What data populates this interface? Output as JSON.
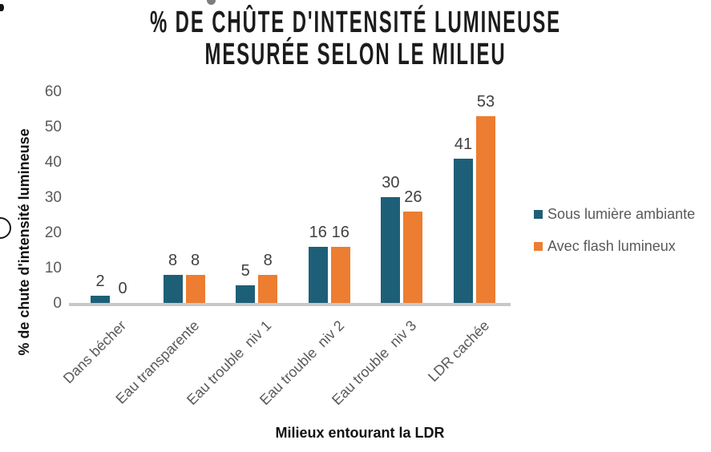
{
  "chart_data": {
    "type": "bar",
    "title": "% DE CHÛTE D'INTENSITÉ LUMINEUSE MESURÉE SELON LE MILIEU",
    "title_lines": [
      "% DE CHÛTE D'INTENSITÉ LUMINEUSE",
      "MESURÉE SELON LE MILIEU"
    ],
    "xlabel": "Milieux entourant la LDR",
    "ylabel": "% de chute d'intensité lumineuse",
    "categories": [
      "Dans bécher",
      "Eau transparente",
      "Eau trouble  niv 1",
      "Eau trouble  niv 2",
      "Eau trouble  niv 3",
      "LDR cachée"
    ],
    "series": [
      {
        "name": "Sous lumière ambiante",
        "color": "#1E5F78",
        "values": [
          2,
          8,
          5,
          16,
          30,
          41
        ]
      },
      {
        "name": "Avec flash lumineux",
        "color": "#ED7D31",
        "values": [
          0,
          8,
          8,
          16,
          26,
          53
        ]
      }
    ],
    "yticks": [
      0,
      10,
      20,
      30,
      40,
      50,
      60
    ],
    "ylim": [
      0,
      60
    ],
    "grid": false,
    "data_labels": true,
    "legend_position": "right",
    "colors": {
      "title_text": "#1c1c1c",
      "axis_line": "#c8c8c8",
      "tick_text": "#595959",
      "value_label_text": "#404040"
    }
  }
}
